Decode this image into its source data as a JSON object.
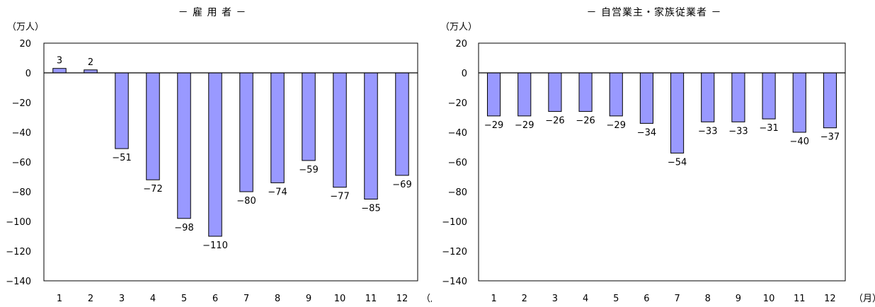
{
  "chart_data": [
    {
      "type": "bar",
      "title": "－ 雇 用 者 －",
      "ylabel": "（万人）",
      "xunit": "（月）",
      "categories": [
        "1",
        "2",
        "3",
        "4",
        "5",
        "6",
        "7",
        "8",
        "9",
        "10",
        "11",
        "12"
      ],
      "values": [
        3,
        2,
        -51,
        -72,
        -98,
        -110,
        -80,
        -74,
        -59,
        -77,
        -85,
        -69
      ],
      "data_labels": [
        "3",
        "2",
        "−51",
        "−72",
        "−98",
        "−110",
        "−80",
        "−74",
        "−59",
        "−77",
        "−85",
        "−69"
      ],
      "ylim": [
        -140,
        20
      ],
      "yticks": [
        20,
        0,
        -20,
        -40,
        -60,
        -80,
        -100,
        -120,
        -140
      ],
      "ytick_labels": [
        "20",
        "0",
        "−20",
        "−40",
        "−60",
        "−80",
        "−100",
        "−120",
        "−140"
      ],
      "grid": false,
      "legend": "none",
      "bar_color": "#9999FF"
    },
    {
      "type": "bar",
      "title": "－ 自営業主・家族従業者 －",
      "ylabel": "（万人）",
      "xunit": "（月）",
      "categories": [
        "1",
        "2",
        "3",
        "4",
        "5",
        "6",
        "7",
        "8",
        "9",
        "10",
        "11",
        "12"
      ],
      "values": [
        -29,
        -29,
        -26,
        -26,
        -29,
        -34,
        -54,
        -33,
        -33,
        -31,
        -40,
        -37
      ],
      "data_labels": [
        "−29",
        "−29",
        "−26",
        "−26",
        "−29",
        "−34",
        "−54",
        "−33",
        "−33",
        "−31",
        "−40",
        "−37"
      ],
      "ylim": [
        -140,
        20
      ],
      "yticks": [
        20,
        0,
        -20,
        -40,
        -60,
        -80,
        -100,
        -120,
        -140
      ],
      "ytick_labels": [
        "20",
        "0",
        "−20",
        "−40",
        "−60",
        "−80",
        "−100",
        "−120",
        "−140"
      ],
      "grid": false,
      "legend": "none",
      "bar_color": "#9999FF"
    }
  ]
}
